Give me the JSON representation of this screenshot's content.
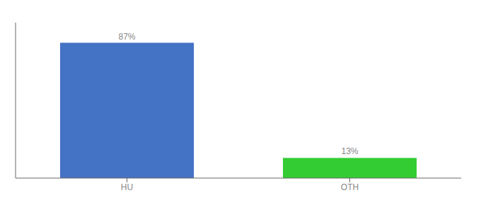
{
  "chart_data": {
    "type": "bar",
    "categories": [
      "HU",
      "OTH"
    ],
    "values": [
      87,
      13
    ],
    "value_labels": [
      "87%",
      "13%"
    ],
    "colors": [
      "#4472C4",
      "#33CC33"
    ],
    "ylim": [
      0,
      100
    ],
    "grid": false,
    "data_labels": true,
    "tick_labels": "x"
  }
}
